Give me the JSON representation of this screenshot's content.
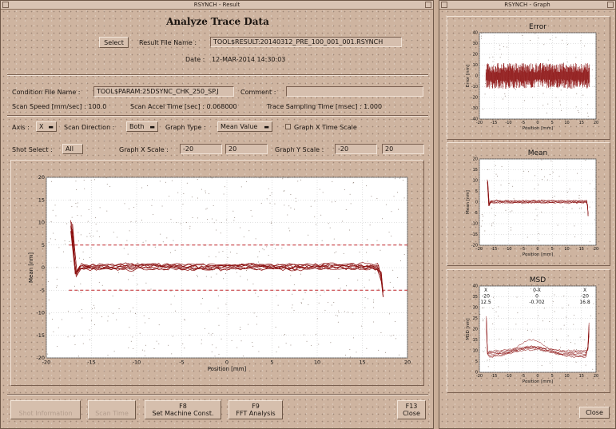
{
  "result_window": {
    "title": "RSYNCH - Result",
    "heading": "Analyze Trace Data",
    "select_button": "Select",
    "result_file_label": "Result File Name :",
    "result_file_value": "TOOL$RESULT:20140312_PRE_100_001_001.RSYNCH",
    "date_label": "Date :",
    "date_value": "12-MAR-2014 14:30:03",
    "condition_file_label": "Condition File Name :",
    "condition_file_value": "TOOL$PARAM:25DSYNC_CHK_250_SP.J",
    "comment_label": "Comment :",
    "comment_value": "",
    "scan_speed": "Scan Speed [mm/sec] : 100.0",
    "scan_accel": "Scan Accel Time [sec] : 0.068000",
    "trace_sampling": "Trace Sampling Time [msec] : 1.000",
    "axis_label": "Axis :",
    "axis_value": "X",
    "scan_direction_label": "Scan Direction :",
    "scan_direction_value": "Both",
    "graph_type_label": "Graph Type :",
    "graph_type_value": "Mean Value",
    "graph_x_time_scale": "Graph X Time Scale",
    "shot_select_label": "Shot Select :",
    "shot_select_value": "All",
    "graph_x_scale_label": "Graph X Scale :",
    "graph_x_min": "-20",
    "graph_x_max": "20",
    "graph_y_scale_label": "Graph Y Scale :",
    "graph_y_min": "-20",
    "graph_y_max": "20",
    "buttons": {
      "b1": "Shot Information",
      "b2": "Scan Time",
      "f8_key": "F8",
      "f8": "Set Machine Const.",
      "f9_key": "F9",
      "f9": "FFT Analysis",
      "f13_key": "F13",
      "f13": "Close"
    }
  },
  "graph_window": {
    "title": "RSYNCH - Graph",
    "close_button": "Close"
  },
  "main_chart": {
    "type": "line",
    "xlabel": "Position [mm]",
    "ylabel": "Mean [nm]",
    "xlim": [
      -20,
      20
    ],
    "ylim": [
      -20,
      20
    ],
    "x_ticks": [
      "-20",
      "-15",
      "-10",
      "-5",
      "0",
      "5",
      "10",
      "15",
      "20"
    ],
    "y_ticks": [
      "20",
      "15",
      "10",
      "5",
      "0",
      "-5",
      "-10",
      "-15",
      "-20"
    ],
    "limit_lines": [
      5,
      -5
    ],
    "series_color": "#8b0f0f",
    "limit_color": "#c0262a"
  },
  "chart_data": [
    {
      "type": "line",
      "title": "Error",
      "xlabel": "Position [mm]",
      "ylabel": "Error [nm]",
      "xlim": [
        -20,
        20
      ],
      "ylim": [
        -40,
        40
      ],
      "x_ticks": [
        "-20",
        "-15",
        "-10",
        "-5",
        "0",
        "5",
        "10",
        "15",
        "20"
      ],
      "y_ticks": [
        "40",
        "30",
        "20",
        "10",
        "0",
        "-10",
        "-20",
        "-30",
        "-40"
      ],
      "noise_band": [
        -10,
        10
      ]
    },
    {
      "type": "line",
      "title": "Mean",
      "xlabel": "Position [mm]",
      "ylabel": "Mean [nm]",
      "xlim": [
        -20,
        20
      ],
      "ylim": [
        -20,
        20
      ],
      "x_ticks": [
        "-20",
        "-15",
        "-10",
        "-5",
        "0",
        "5",
        "10",
        "15",
        "20"
      ],
      "y_ticks": [
        "20",
        "15",
        "10",
        "5",
        "0",
        "-5",
        "-10",
        "-15",
        "-20"
      ]
    },
    {
      "type": "line",
      "title": "MSD",
      "xlabel": "Position [mm]",
      "ylabel": "MSD [nm]",
      "xlim": [
        -20,
        20
      ],
      "ylim": [
        0,
        40
      ],
      "x_ticks": [
        "-20",
        "-15",
        "-10",
        "-5",
        "0",
        "5",
        "10",
        "15",
        "20"
      ],
      "y_ticks": [
        "40",
        "35",
        "30",
        "25",
        "20",
        "15",
        "10",
        "5",
        "0"
      ],
      "annotation": {
        "col1": [
          "X",
          "-20",
          "12.5"
        ],
        "col2": [
          "0-X",
          "0",
          "-0.702"
        ],
        "col3": [
          "X",
          "-20",
          "16.8"
        ]
      }
    }
  ]
}
